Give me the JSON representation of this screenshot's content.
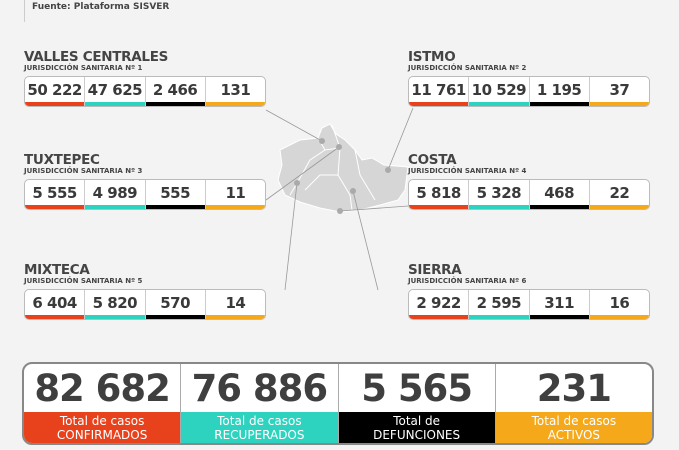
{
  "source": "Fuente: Plataforma SISVER",
  "colors": {
    "confirmed": "#e8421c",
    "recovered": "#2ed3bf",
    "deaths": "#000000",
    "active": "#f5a91a"
  },
  "regions": [
    {
      "name": "VALLES CENTRALES",
      "subtitle": "JURISDICCIÓN SANITARIA Nº 1",
      "values": [
        "50 222",
        "47 625",
        "2 466",
        "131"
      ]
    },
    {
      "name": "ISTMO",
      "subtitle": "JURISDICCIÓN SANITARIA Nº 2",
      "values": [
        "11 761",
        "10 529",
        "1 195",
        "37"
      ]
    },
    {
      "name": "TUXTEPEC",
      "subtitle": "JURISDICCIÓN SANITARIA Nº 3",
      "values": [
        "5 555",
        "4 989",
        "555",
        "11"
      ]
    },
    {
      "name": "COSTA",
      "subtitle": "JURISDICCIÓN SANITARIA Nº 4",
      "values": [
        "5 818",
        "5 328",
        "468",
        "22"
      ]
    },
    {
      "name": "MIXTECA",
      "subtitle": "JURISDICCIÓN SANITARIA Nº 5",
      "values": [
        "6 404",
        "5 820",
        "570",
        "14"
      ]
    },
    {
      "name": "SIERRA",
      "subtitle": "JURISDICCIÓN SANITARIA Nº 6",
      "values": [
        "2 922",
        "2 595",
        "311",
        "16"
      ]
    }
  ],
  "totals": [
    {
      "value": "82 682",
      "line1": "Total de casos",
      "line2": "CONFIRMADOS"
    },
    {
      "value": "76 886",
      "line1": "Total de casos",
      "line2": "RECUPERADOS"
    },
    {
      "value": "5 565",
      "line1": "Total de",
      "line2": "DEFUNCIONES"
    },
    {
      "value": "231",
      "line1": "Total de casos",
      "line2": "ACTIVOS"
    }
  ]
}
